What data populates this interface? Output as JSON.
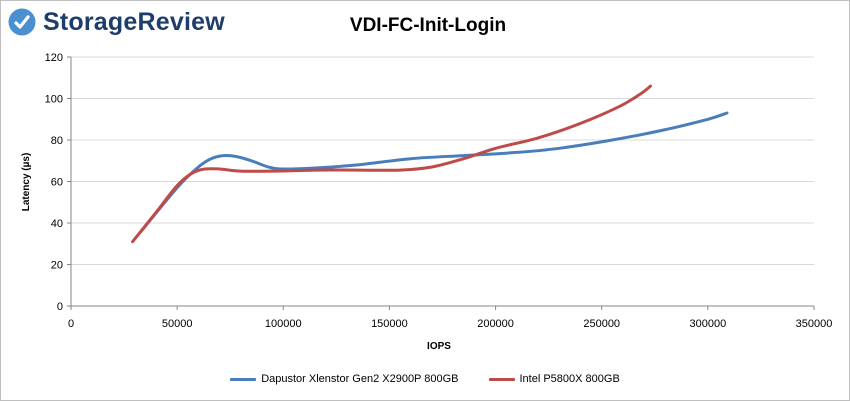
{
  "brand": {
    "name": "StorageReview"
  },
  "chart_data": {
    "type": "line",
    "title": "VDI-FC-Init-Login",
    "xlabel": "IOPS",
    "ylabel": "Latency (µs)",
    "xlim": [
      0,
      350000
    ],
    "ylim": [
      0,
      120
    ],
    "xticks": [
      0,
      50000,
      100000,
      150000,
      200000,
      250000,
      300000,
      350000
    ],
    "yticks": [
      0,
      20,
      40,
      60,
      80,
      100,
      120
    ],
    "grid": "horizontal",
    "legend_position": "bottom",
    "series": [
      {
        "name": "Dapustor Xlenstor Gen2 X2900P 800GB",
        "color": "#4a7ebb",
        "x": [
          33000,
          50000,
          60000,
          66000,
          72000,
          78000,
          85000,
          93000,
          100000,
          115000,
          135000,
          160000,
          185000,
          210000,
          230000,
          255000,
          280000,
          300000,
          309000
        ],
        "y": [
          36,
          57,
          67,
          71,
          72.5,
          72,
          70,
          67,
          66,
          66.5,
          68,
          71,
          72.5,
          74,
          76,
          80,
          85,
          90,
          93
        ]
      },
      {
        "name": "Intel P5800X 800GB",
        "color": "#be4b48",
        "x": [
          29000,
          40000,
          50000,
          57000,
          63000,
          70000,
          80000,
          95000,
          115000,
          135000,
          155000,
          170000,
          185000,
          200000,
          220000,
          240000,
          258000,
          268000,
          273000
        ],
        "y": [
          31,
          45,
          58,
          64,
          66,
          66,
          65,
          65,
          65.5,
          65.5,
          65.5,
          67,
          71,
          76,
          81,
          88,
          96,
          102,
          106
        ]
      }
    ]
  }
}
